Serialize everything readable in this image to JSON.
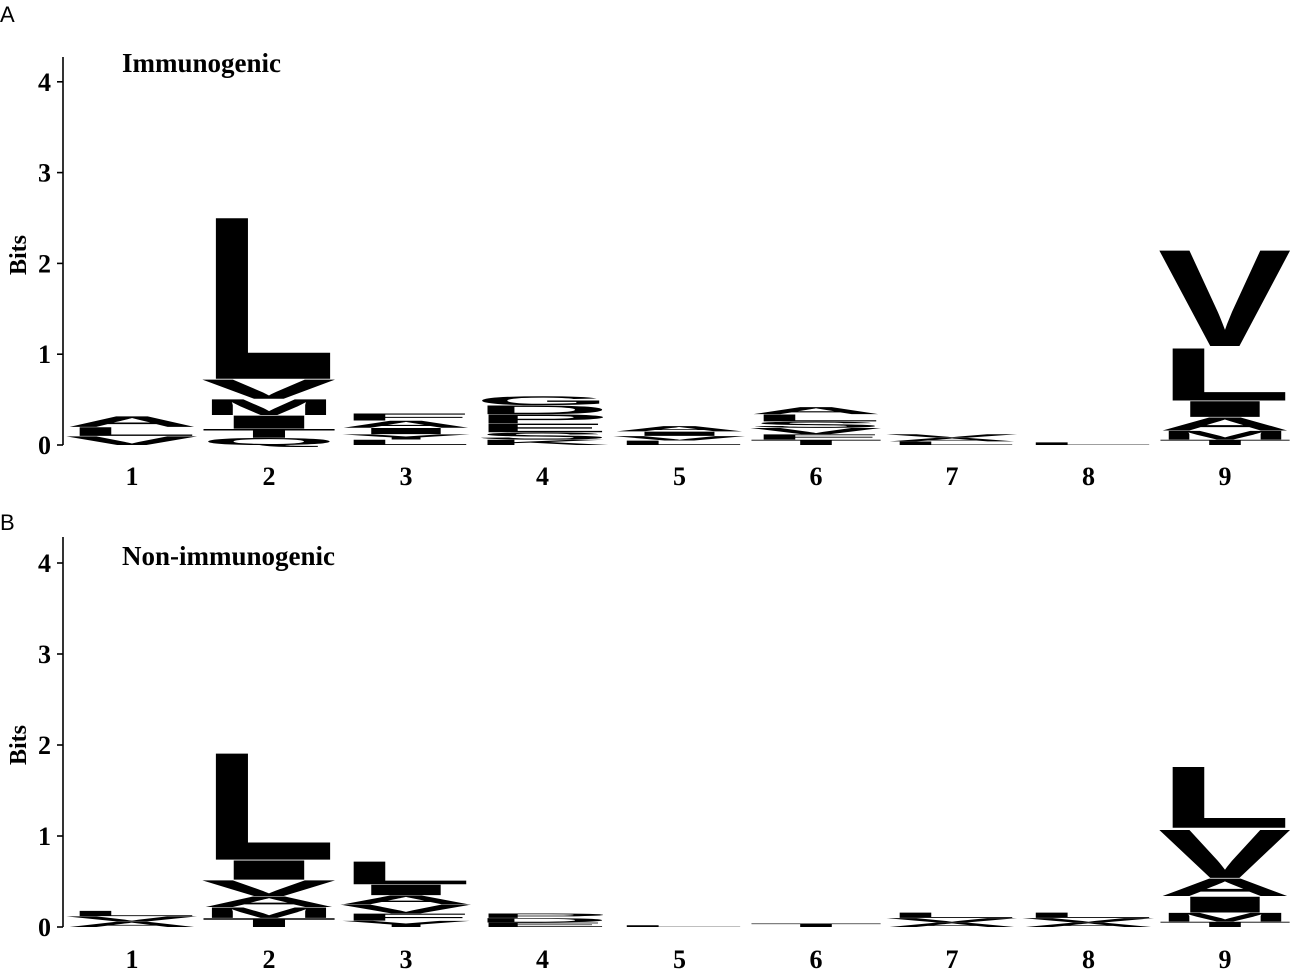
{
  "chart_data": [
    {
      "type": "sequence-logo",
      "panel_label": "A",
      "title": "Immunogenic",
      "ylabel": "Bits",
      "ylim": [
        0,
        4.3
      ],
      "yticks": [
        "0",
        "1",
        "2",
        "3",
        "4"
      ],
      "positions": [
        "1",
        "2",
        "3",
        "4",
        "5",
        "6",
        "7",
        "8",
        "9"
      ],
      "stacks": [
        [
          {
            "letter": "A",
            "bits": 0.12
          },
          {
            "letter": "V",
            "bits": 0.1
          },
          {
            "letter": "L",
            "bits": 0.1
          }
        ],
        [
          {
            "letter": "L",
            "bits": 1.85
          },
          {
            "letter": "V",
            "bits": 0.22
          },
          {
            "letter": "M",
            "bits": 0.18
          },
          {
            "letter": "I",
            "bits": 0.15
          },
          {
            "letter": "T",
            "bits": 0.1
          },
          {
            "letter": "Q",
            "bits": 0.08
          }
        ],
        [
          {
            "letter": "L",
            "bits": 0.06
          },
          {
            "letter": "Y",
            "bits": 0.06
          },
          {
            "letter": "A",
            "bits": 0.08
          },
          {
            "letter": "F",
            "bits": 0.08
          },
          {
            "letter": "I",
            "bits": 0.07
          }
        ],
        [
          {
            "letter": "E",
            "bits": 0.1
          },
          {
            "letter": "P",
            "bits": 0.1
          },
          {
            "letter": "D",
            "bits": 0.1
          },
          {
            "letter": "G",
            "bits": 0.1
          },
          {
            "letter": "S",
            "bits": 0.08
          },
          {
            "letter": "K",
            "bits": 0.06
          }
        ],
        [
          {
            "letter": "L",
            "bits": 0.05
          },
          {
            "letter": "A",
            "bits": 0.06
          },
          {
            "letter": "V",
            "bits": 0.05
          },
          {
            "letter": "I",
            "bits": 0.05
          }
        ],
        [
          {
            "letter": "L",
            "bits": 0.08
          },
          {
            "letter": "T",
            "bits": 0.06
          },
          {
            "letter": "V",
            "bits": 0.07
          },
          {
            "letter": "A",
            "bits": 0.08
          },
          {
            "letter": "S",
            "bits": 0.07
          },
          {
            "letter": "F",
            "bits": 0.06
          }
        ],
        [
          {
            "letter": "L",
            "bits": 0.04
          },
          {
            "letter": "A",
            "bits": 0.04
          },
          {
            "letter": "V",
            "bits": 0.04
          }
        ],
        [
          {
            "letter": "L",
            "bits": 0.03
          }
        ],
        [
          {
            "letter": "V",
            "bits": 1.1
          },
          {
            "letter": "L",
            "bits": 0.6
          },
          {
            "letter": "A",
            "bits": 0.15
          },
          {
            "letter": "I",
            "bits": 0.18
          },
          {
            "letter": "M",
            "bits": 0.1
          },
          {
            "letter": "T",
            "bits": 0.06
          }
        ]
      ]
    },
    {
      "type": "sequence-logo",
      "panel_label": "B",
      "title": "Non-immunogenic",
      "ylabel": "Bits",
      "ylim": [
        0,
        4.3
      ],
      "yticks": [
        "0",
        "1",
        "2",
        "3",
        "4"
      ],
      "positions": [
        "1",
        "2",
        "3",
        "4",
        "5",
        "6",
        "7",
        "8",
        "9"
      ],
      "stacks": [
        [
          {
            "letter": "A",
            "bits": 0.06
          },
          {
            "letter": "V",
            "bits": 0.06
          },
          {
            "letter": "L",
            "bits": 0.06
          }
        ],
        [
          {
            "letter": "L",
            "bits": 1.22
          },
          {
            "letter": "I",
            "bits": 0.22
          },
          {
            "letter": "V",
            "bits": 0.18
          },
          {
            "letter": "M",
            "bits": 0.12
          },
          {
            "letter": "A",
            "bits": 0.12
          },
          {
            "letter": "T",
            "bits": 0.1
          }
        ],
        [
          {
            "letter": "L",
            "bits": 0.26
          },
          {
            "letter": "I",
            "bits": 0.12
          },
          {
            "letter": "V",
            "bits": 0.1
          },
          {
            "letter": "A",
            "bits": 0.1
          },
          {
            "letter": "F",
            "bits": 0.08
          },
          {
            "letter": "Y",
            "bits": 0.07
          }
        ],
        [
          {
            "letter": "E",
            "bits": 0.05
          },
          {
            "letter": "D",
            "bits": 0.05
          },
          {
            "letter": "P",
            "bits": 0.05
          }
        ],
        [
          {
            "letter": "L",
            "bits": 0.02
          }
        ],
        [
          {
            "letter": "T",
            "bits": 0.04
          }
        ],
        [
          {
            "letter": "L",
            "bits": 0.06
          },
          {
            "letter": "A",
            "bits": 0.05
          },
          {
            "letter": "V",
            "bits": 0.05
          }
        ],
        [
          {
            "letter": "L",
            "bits": 0.06
          },
          {
            "letter": "A",
            "bits": 0.05
          },
          {
            "letter": "V",
            "bits": 0.05
          }
        ],
        [
          {
            "letter": "L",
            "bits": 0.7
          },
          {
            "letter": "V",
            "bits": 0.55
          },
          {
            "letter": "A",
            "bits": 0.2
          },
          {
            "letter": "I",
            "bits": 0.18
          },
          {
            "letter": "M",
            "bits": 0.1
          },
          {
            "letter": "T",
            "bits": 0.06
          }
        ]
      ]
    }
  ]
}
